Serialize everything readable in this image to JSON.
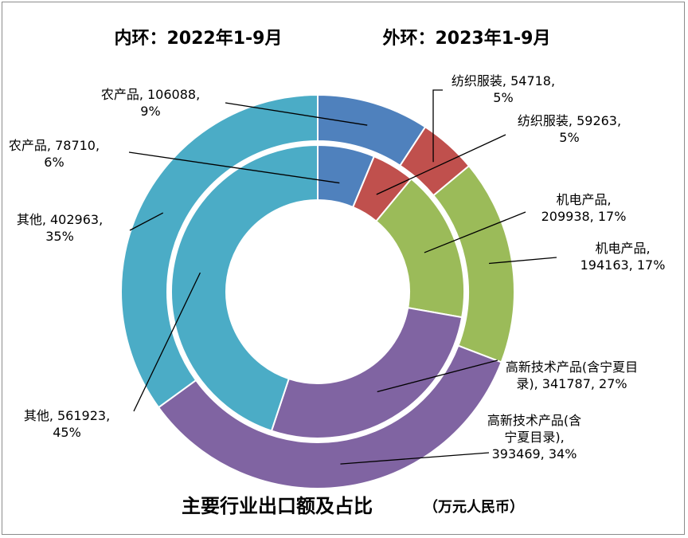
{
  "chart_data": {
    "type": "donut",
    "title": "主要行业出口额及占比",
    "unit_note": "（万元人民币）",
    "inner_ring_label": "内环：2022年1-9月",
    "outer_ring_label": "外环：2023年1-9月",
    "categories": [
      "农产品",
      "纺织服装",
      "机电产品",
      "高新技术产品(含宁夏目录)",
      "其他"
    ],
    "colors": [
      "#4f81bd",
      "#c0504d",
      "#9bbb59",
      "#8064a2",
      "#4bacc6"
    ],
    "series": [
      {
        "ring": "inner",
        "values": [
          78710,
          59263,
          209938,
          341787,
          561923
        ],
        "percents": [
          "6%",
          "5%",
          "17%",
          "27%",
          "45%"
        ],
        "labels": [
          [
            "农产品, 78710,",
            "6%"
          ],
          [
            "纺织服装, 59263,",
            "5%"
          ],
          [
            "机电产品,",
            "209938, 17%"
          ],
          [
            "高新技术产品(含宁夏目",
            "录), 341787, 27%"
          ],
          [
            "其他, 561923,",
            "45%"
          ]
        ]
      },
      {
        "ring": "outer",
        "values": [
          106088,
          54718,
          194163,
          393469,
          402963
        ],
        "percents": [
          "9%",
          "5%",
          "17%",
          "34%",
          "35%"
        ],
        "labels": [
          [
            "农产品, 106088,",
            "9%"
          ],
          [
            "纺织服装, 54718,",
            "5%"
          ],
          [
            "机电产品,",
            "194163, 17%"
          ],
          [
            "高新技术产品(含",
            "宁夏目录),",
            "393469, 34%"
          ],
          [
            "其他, 402963,",
            "35%"
          ]
        ]
      }
    ]
  }
}
